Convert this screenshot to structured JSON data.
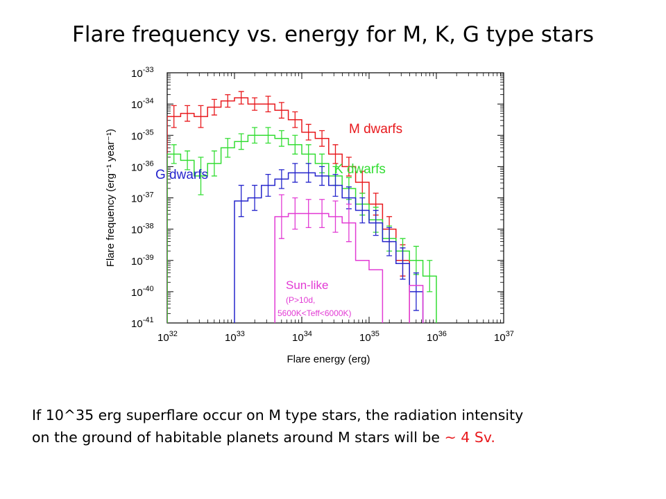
{
  "title": "Flare frequency vs. energy for M, K, G type stars",
  "caption": {
    "line1": "If 10^35 erg superflare occur on M type stars,  the radiation intensity",
    "line2_prefix": "on the ground of habitable planets around M stars will be ",
    "line2_highlight": "~  4 Sv."
  },
  "chart_data": {
    "type": "histogram-step",
    "xlabel": "Flare energy (erg)",
    "ylabel": "Flare frequency (erg⁻¹ year⁻¹)",
    "x_scale": "log",
    "y_scale": "log",
    "xlim": [
      1e+32,
      1e+37
    ],
    "ylim": [
      1e-41,
      1e-33
    ],
    "x_ticks": [
      32,
      33,
      34,
      35,
      36,
      37
    ],
    "y_ticks": [
      -33,
      -34,
      -35,
      -36,
      -37,
      -38,
      -39,
      -40,
      -41
    ],
    "bin_width_dex": 0.2,
    "series": [
      {
        "name": "M dwarfs",
        "color": "#e8181c",
        "log_x_start": 32,
        "log_y": [
          -34.4,
          -34.3,
          -34.4,
          -34.1,
          -33.9,
          -33.8,
          -34.0,
          -34.0,
          -34.2,
          -34.5,
          -34.9,
          -35.1,
          -35.6,
          -36.0,
          -36.5,
          -37.2,
          -38.0,
          -39.0
        ],
        "err_dex": [
          0.35,
          0.25,
          0.35,
          0.25,
          0.2,
          0.2,
          0.2,
          0.25,
          0.25,
          0.25,
          0.25,
          0.25,
          0.3,
          0.3,
          0.35,
          0.35,
          0.4,
          0.5
        ]
      },
      {
        "name": "K dwarfs",
        "color": "#33dd33",
        "log_x_start": 32,
        "log_y": [
          -35.6,
          -35.8,
          -36.3,
          -35.9,
          -35.4,
          -35.2,
          -35.0,
          -35.0,
          -35.1,
          -35.3,
          -35.6,
          -35.9,
          -36.3,
          -36.7,
          -37.2,
          -37.7,
          -38.3,
          -38.7,
          -39.0,
          -39.5
        ],
        "err_dex": [
          0.3,
          0.3,
          0.6,
          0.4,
          0.3,
          0.25,
          0.25,
          0.25,
          0.25,
          0.3,
          0.3,
          0.3,
          0.3,
          0.35,
          0.35,
          0.4,
          0.4,
          0.4,
          0.45,
          0.5
        ]
      },
      {
        "name": "G dwarfs",
        "color": "#2424cc",
        "log_x_start": 33,
        "log_y": [
          -37.1,
          -37.0,
          -36.6,
          -36.4,
          -36.2,
          -36.2,
          -36.3,
          -36.6,
          -37.0,
          -37.4,
          -37.8,
          -38.4,
          -39.1,
          -40.0
        ],
        "err_dex": [
          0.5,
          0.4,
          0.35,
          0.3,
          0.3,
          0.3,
          0.3,
          0.35,
          0.35,
          0.4,
          0.4,
          0.45,
          0.5,
          0.6
        ]
      },
      {
        "name": "Sun-like",
        "note": "(P>10d, 5600K<Teff<6000K)",
        "color": "#e23ad4",
        "log_x_start": 33.6,
        "log_y": [
          -37.6,
          -37.5,
          -37.5,
          -37.5,
          -37.6,
          -37.8,
          -39.0,
          -39.3
        ],
        "err_dex": [
          0.7,
          0.5,
          0.45,
          0.45,
          0.5,
          0.6,
          0.0,
          0.0
        ],
        "extra_bins": [
          {
            "log_x": 35.6,
            "log_y": -39.8
          }
        ]
      }
    ]
  }
}
